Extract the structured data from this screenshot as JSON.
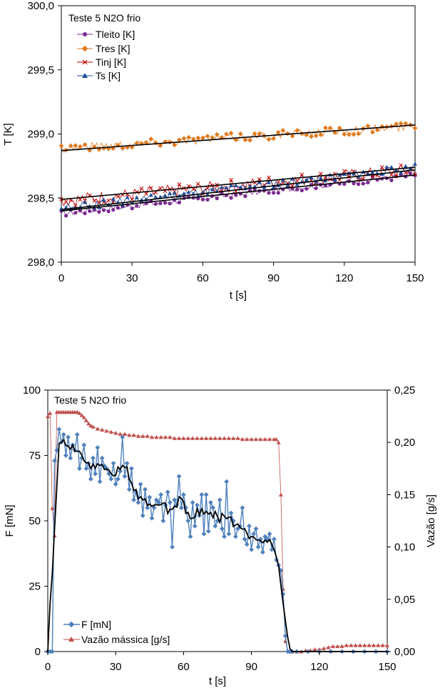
{
  "chart_data": [
    {
      "type": "scatter",
      "title": "Teste 5 N2O frio",
      "xlabel": "t [s]",
      "ylabel": "T [K]",
      "xlim": [
        0,
        150
      ],
      "ylim": [
        298.0,
        300.0
      ],
      "xticks": [
        "0",
        "30",
        "60",
        "90",
        "120",
        "150"
      ],
      "yticks": [
        "298,0",
        "298,5",
        "299,0",
        "299,5",
        "300,0"
      ],
      "grid": false,
      "legend_position": "top-left",
      "series": [
        {
          "name": "Tleito  [K]",
          "color": "#7b2a91",
          "marker": "circle",
          "start": 298.38,
          "end": 298.68,
          "noise": 0.025
        },
        {
          "name": "Tres [K]",
          "color": "#e07a1f",
          "marker": "diamond",
          "start": 298.89,
          "end": 299.06,
          "noise": 0.035
        },
        {
          "name": "Tinj [K]",
          "color": "#c00000",
          "marker": "x",
          "start": 298.48,
          "end": 298.72,
          "noise": 0.05
        },
        {
          "name": "Ts  [K]",
          "color": "#1f4e9a",
          "marker": "triangle",
          "start": 298.42,
          "end": 298.74,
          "noise": 0.03
        }
      ],
      "trendlines": [
        {
          "start": 298.4,
          "end": 298.68
        },
        {
          "start": 298.87,
          "end": 299.07
        },
        {
          "start": 298.49,
          "end": 298.74
        },
        {
          "start": 298.41,
          "end": 298.72
        }
      ]
    },
    {
      "type": "line",
      "title": "Teste 5 N2O frio",
      "xlabel": "t [s]",
      "ylabel": "F [mN]",
      "y2label": "Vazão [g/s]",
      "xlim": [
        0,
        150
      ],
      "ylim": [
        0,
        100
      ],
      "y2lim": [
        0,
        0.25
      ],
      "xticks": [
        "0",
        "30",
        "60",
        "90",
        "120",
        "150"
      ],
      "yticks": [
        "0",
        "25",
        "50",
        "75",
        "100"
      ],
      "y2ticks": [
        "0,00",
        "0,05",
        "0,10",
        "0,15",
        "0,20",
        "0,25"
      ],
      "grid": false,
      "legend_position": "bottom-left",
      "series": [
        {
          "name": "F [mN]",
          "color": "#4f81bd",
          "axis": "left",
          "x": [
            0,
            1,
            2,
            3,
            4,
            5,
            6,
            7,
            8,
            9,
            10,
            11,
            12,
            13,
            14,
            15,
            16,
            17,
            18,
            19,
            20,
            21,
            22,
            23,
            24,
            25,
            26,
            27,
            28,
            29,
            30,
            31,
            32,
            33,
            34,
            35,
            36,
            37,
            38,
            39,
            40,
            41,
            42,
            43,
            44,
            45,
            46,
            47,
            48,
            49,
            50,
            51,
            52,
            53,
            54,
            55,
            56,
            57,
            58,
            59,
            60,
            61,
            62,
            63,
            64,
            65,
            66,
            67,
            68,
            69,
            70,
            71,
            72,
            73,
            74,
            75,
            76,
            77,
            78,
            79,
            80,
            81,
            82,
            83,
            84,
            85,
            86,
            87,
            88,
            89,
            90,
            91,
            92,
            93,
            94,
            95,
            96,
            97,
            98,
            99,
            100,
            101,
            102,
            103,
            104,
            105,
            106,
            107,
            108,
            110,
            115,
            120,
            125,
            130,
            135,
            140,
            145,
            150
          ],
          "values": [
            0,
            0,
            0,
            73,
            77,
            85,
            80,
            83,
            75,
            82,
            74,
            79,
            77,
            83,
            70,
            74,
            79,
            70,
            72,
            66,
            74,
            68,
            78,
            65,
            74,
            71,
            70,
            68,
            66,
            72,
            64,
            66,
            69,
            82,
            67,
            72,
            62,
            70,
            58,
            61,
            57,
            64,
            52,
            62,
            55,
            59,
            51,
            55,
            58,
            57,
            60,
            50,
            56,
            61,
            57,
            40,
            58,
            56,
            67,
            55,
            60,
            55,
            50,
            44,
            57,
            48,
            56,
            52,
            60,
            45,
            60,
            46,
            57,
            55,
            48,
            50,
            58,
            47,
            44,
            65,
            45,
            53,
            50,
            44,
            47,
            48,
            55,
            43,
            41,
            48,
            39,
            45,
            47,
            40,
            43,
            38,
            44,
            43,
            45,
            39,
            43,
            35,
            33,
            31,
            22,
            6,
            0,
            0,
            0,
            0,
            0,
            0,
            0,
            0,
            0,
            0,
            0,
            0
          ]
        },
        {
          "name": "Vazão mássica [g/s]",
          "color": "#c0504d",
          "axis": "right",
          "x": [
            0,
            1,
            2,
            3,
            4,
            5,
            6,
            7,
            8,
            9,
            10,
            11,
            12,
            13,
            14,
            15,
            16,
            17,
            18,
            19,
            20,
            22,
            24,
            26,
            28,
            30,
            32,
            34,
            36,
            38,
            40,
            42,
            44,
            46,
            48,
            50,
            52,
            54,
            56,
            58,
            60,
            62,
            64,
            66,
            68,
            70,
            72,
            74,
            76,
            78,
            80,
            82,
            84,
            86,
            88,
            90,
            92,
            94,
            96,
            98,
            100,
            101,
            102,
            103,
            104,
            105,
            106,
            107,
            108,
            110,
            112,
            114,
            116,
            118,
            120,
            122,
            124,
            126,
            128,
            130,
            132,
            134,
            136,
            138,
            140,
            142,
            144,
            146,
            148,
            150
          ],
          "values": [
            0.225,
            0.228,
            0.137,
            0.111,
            0.229,
            0.229,
            0.229,
            0.229,
            0.229,
            0.229,
            0.229,
            0.229,
            0.229,
            0.229,
            0.228,
            0.226,
            0.224,
            0.221,
            0.218,
            0.216,
            0.215,
            0.213,
            0.212,
            0.211,
            0.21,
            0.209,
            0.208,
            0.208,
            0.207,
            0.207,
            0.206,
            0.206,
            0.206,
            0.205,
            0.205,
            0.205,
            0.205,
            0.205,
            0.204,
            0.204,
            0.204,
            0.204,
            0.204,
            0.204,
            0.204,
            0.204,
            0.204,
            0.204,
            0.204,
            0.204,
            0.204,
            0.204,
            0.204,
            0.203,
            0.203,
            0.203,
            0.203,
            0.203,
            0.203,
            0.203,
            0.203,
            0.203,
            0.2,
            0.15,
            0.06,
            0.01,
            0.001,
            0.0,
            0.0,
            0.0,
            0.0,
            0.001,
            0.001,
            0.002,
            0.002,
            0.003,
            0.004,
            0.005,
            0.005,
            0.005,
            0.006,
            0.006,
            0.006,
            0.006,
            0.006,
            0.006,
            0.006,
            0.006,
            0.006,
            0.006
          ]
        },
        {
          "name": "",
          "color": "#000000",
          "axis": "left",
          "smoothed_from": 0,
          "window": 5
        }
      ]
    }
  ]
}
